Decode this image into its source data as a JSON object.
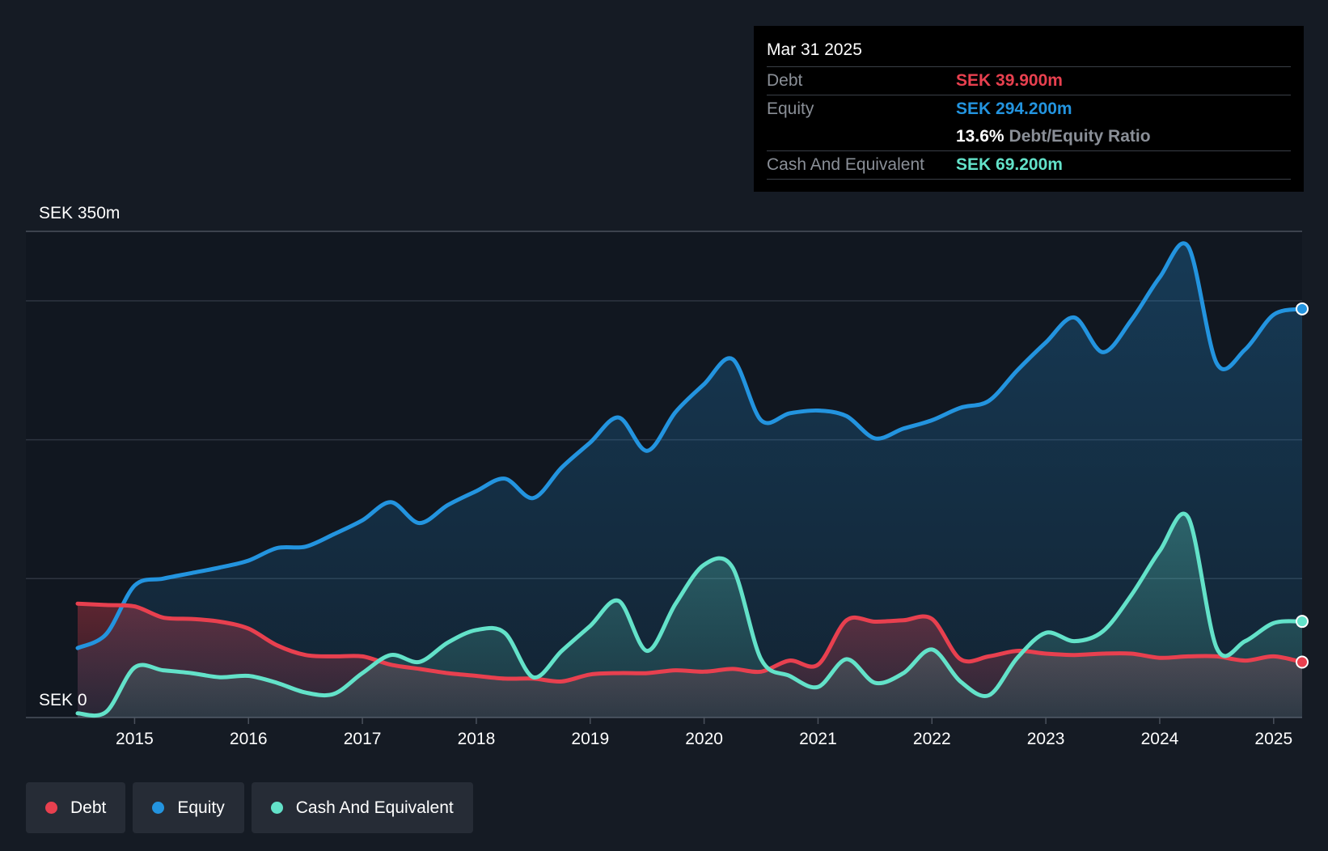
{
  "colors": {
    "background": "#151b24",
    "debt": "#e8404f",
    "equity": "#2394df",
    "cash": "#63e2c9",
    "grid": "#2e3540",
    "text": "#ffffff",
    "muted": "#8a8f97"
  },
  "tooltip": {
    "date": "Mar 31 2025",
    "rows": [
      {
        "label": "Debt",
        "value": "SEK 39.900m",
        "color": "#e8404f"
      },
      {
        "label": "Equity",
        "value": "SEK 294.200m",
        "color": "#2394df"
      }
    ],
    "ratio_value": "13.6%",
    "ratio_label": "Debt/Equity Ratio",
    "cash_label": "Cash And Equivalent",
    "cash_value": "SEK 69.200m",
    "cash_color": "#63e2c9"
  },
  "legend": [
    {
      "label": "Debt",
      "color": "#e8404f"
    },
    {
      "label": "Equity",
      "color": "#2394df"
    },
    {
      "label": "Cash And Equivalent",
      "color": "#63e2c9"
    }
  ],
  "chart_data": {
    "type": "area",
    "title": "",
    "xlabel": "",
    "ylabel": "",
    "y_top_label": "SEK 350m",
    "y_bottom_label": "SEK 0",
    "ylim": [
      0,
      350
    ],
    "xlim": [
      2014.5,
      2025.25
    ],
    "x_ticks": [
      2015,
      2016,
      2017,
      2018,
      2019,
      2020,
      2021,
      2022,
      2023,
      2024,
      2025
    ],
    "x_tick_labels": [
      "2015",
      "2016",
      "2017",
      "2018",
      "2019",
      "2020",
      "2021",
      "2022",
      "2023",
      "2024",
      "2025"
    ],
    "gridlines": [
      100,
      200,
      300,
      350
    ],
    "series": [
      {
        "name": "Equity",
        "color": "#2394df",
        "points": [
          [
            2014.5,
            50
          ],
          [
            2014.75,
            60
          ],
          [
            2015.0,
            95
          ],
          [
            2015.25,
            100
          ],
          [
            2015.5,
            104
          ],
          [
            2015.75,
            108
          ],
          [
            2016.0,
            113
          ],
          [
            2016.25,
            122
          ],
          [
            2016.5,
            123
          ],
          [
            2016.75,
            132
          ],
          [
            2017.0,
            142
          ],
          [
            2017.25,
            155
          ],
          [
            2017.5,
            140
          ],
          [
            2017.75,
            153
          ],
          [
            2018.0,
            163
          ],
          [
            2018.25,
            172
          ],
          [
            2018.5,
            158
          ],
          [
            2018.75,
            180
          ],
          [
            2019.0,
            198
          ],
          [
            2019.25,
            216
          ],
          [
            2019.5,
            192
          ],
          [
            2019.75,
            220
          ],
          [
            2020.0,
            240
          ],
          [
            2020.25,
            258
          ],
          [
            2020.5,
            214
          ],
          [
            2020.75,
            219
          ],
          [
            2021.0,
            221
          ],
          [
            2021.25,
            217
          ],
          [
            2021.5,
            201
          ],
          [
            2021.75,
            208
          ],
          [
            2022.0,
            214
          ],
          [
            2022.25,
            223
          ],
          [
            2022.5,
            228
          ],
          [
            2022.75,
            250
          ],
          [
            2023.0,
            270
          ],
          [
            2023.25,
            288
          ],
          [
            2023.5,
            263
          ],
          [
            2023.75,
            286
          ],
          [
            2024.0,
            317
          ],
          [
            2024.25,
            339
          ],
          [
            2024.5,
            255
          ],
          [
            2024.75,
            265
          ],
          [
            2025.0,
            290
          ],
          [
            2025.25,
            294.2
          ]
        ]
      },
      {
        "name": "Debt",
        "color": "#e8404f",
        "points": [
          [
            2014.5,
            82
          ],
          [
            2014.75,
            81
          ],
          [
            2015.0,
            80
          ],
          [
            2015.25,
            72
          ],
          [
            2015.5,
            71
          ],
          [
            2015.75,
            69
          ],
          [
            2016.0,
            64
          ],
          [
            2016.25,
            52
          ],
          [
            2016.5,
            45
          ],
          [
            2016.75,
            44
          ],
          [
            2017.0,
            44
          ],
          [
            2017.25,
            38
          ],
          [
            2017.5,
            35
          ],
          [
            2017.75,
            32
          ],
          [
            2018.0,
            30
          ],
          [
            2018.25,
            28
          ],
          [
            2018.5,
            28
          ],
          [
            2018.75,
            26
          ],
          [
            2019.0,
            31
          ],
          [
            2019.25,
            32
          ],
          [
            2019.5,
            32
          ],
          [
            2019.75,
            34
          ],
          [
            2020.0,
            33
          ],
          [
            2020.25,
            35
          ],
          [
            2020.5,
            33
          ],
          [
            2020.75,
            41
          ],
          [
            2021.0,
            38
          ],
          [
            2021.25,
            70
          ],
          [
            2021.5,
            69
          ],
          [
            2021.75,
            70
          ],
          [
            2022.0,
            71
          ],
          [
            2022.25,
            42
          ],
          [
            2022.5,
            44
          ],
          [
            2022.75,
            48
          ],
          [
            2023.0,
            46
          ],
          [
            2023.25,
            45
          ],
          [
            2023.5,
            46
          ],
          [
            2023.75,
            46
          ],
          [
            2024.0,
            43
          ],
          [
            2024.25,
            44
          ],
          [
            2024.5,
            44
          ],
          [
            2024.75,
            41
          ],
          [
            2025.0,
            44
          ],
          [
            2025.25,
            39.9
          ]
        ]
      },
      {
        "name": "Cash And Equivalent",
        "color": "#63e2c9",
        "points": [
          [
            2014.5,
            3
          ],
          [
            2014.75,
            4
          ],
          [
            2015.0,
            36
          ],
          [
            2015.25,
            34
          ],
          [
            2015.5,
            32
          ],
          [
            2015.75,
            29
          ],
          [
            2016.0,
            30
          ],
          [
            2016.25,
            25
          ],
          [
            2016.5,
            18
          ],
          [
            2016.75,
            17
          ],
          [
            2017.0,
            32
          ],
          [
            2017.25,
            45
          ],
          [
            2017.5,
            40
          ],
          [
            2017.75,
            54
          ],
          [
            2018.0,
            63
          ],
          [
            2018.25,
            61
          ],
          [
            2018.5,
            29
          ],
          [
            2018.75,
            48
          ],
          [
            2019.0,
            66
          ],
          [
            2019.25,
            84
          ],
          [
            2019.5,
            48
          ],
          [
            2019.75,
            82
          ],
          [
            2020.0,
            110
          ],
          [
            2020.25,
            108
          ],
          [
            2020.5,
            42
          ],
          [
            2020.75,
            30
          ],
          [
            2021.0,
            22
          ],
          [
            2021.25,
            42
          ],
          [
            2021.5,
            25
          ],
          [
            2021.75,
            32
          ],
          [
            2022.0,
            49
          ],
          [
            2022.25,
            26
          ],
          [
            2022.5,
            16
          ],
          [
            2022.75,
            43
          ],
          [
            2023.0,
            61
          ],
          [
            2023.25,
            55
          ],
          [
            2023.5,
            62
          ],
          [
            2023.75,
            88
          ],
          [
            2024.0,
            120
          ],
          [
            2024.25,
            144
          ],
          [
            2024.5,
            50
          ],
          [
            2024.75,
            55
          ],
          [
            2025.0,
            68
          ],
          [
            2025.25,
            69.2
          ]
        ]
      }
    ]
  }
}
